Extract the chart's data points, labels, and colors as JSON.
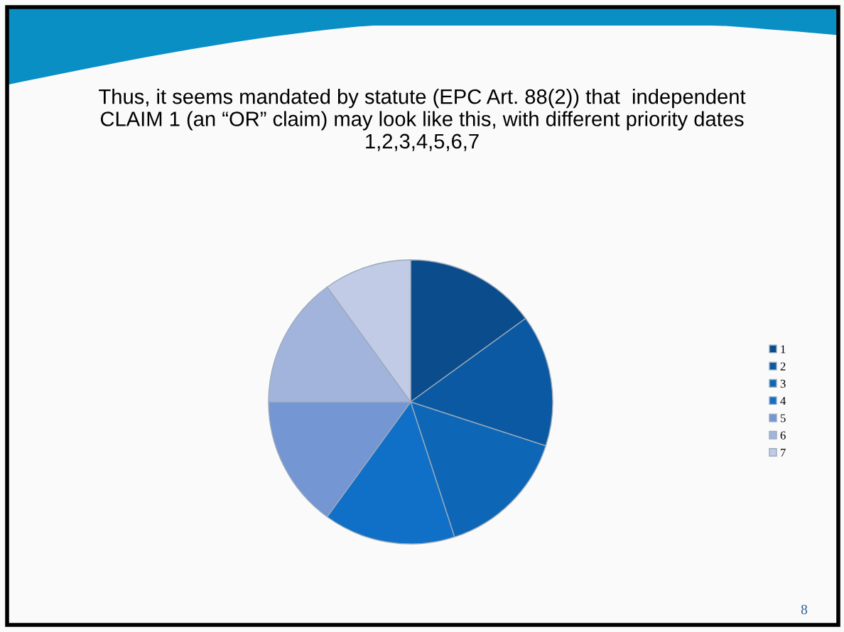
{
  "chart_data": {
    "type": "pie",
    "title": "Thus, it seems mandated by statute (EPC Art. 88(2)) that  independent\nCLAIM 1 (an “OR” claim) may look like this, with different priority dates\n1,2,3,4,5,6,7",
    "categories": [
      "1",
      "2",
      "3",
      "4",
      "5",
      "6",
      "7"
    ],
    "values": [
      15,
      15,
      15,
      15,
      15,
      15,
      10
    ],
    "colors": [
      "#0a4c8c",
      "#0b59a2",
      "#0d66b6",
      "#106fc6",
      "#7496d2",
      "#a3b4dc",
      "#c1cbe6"
    ],
    "legend": "right",
    "annotations": [
      "8"
    ]
  }
}
